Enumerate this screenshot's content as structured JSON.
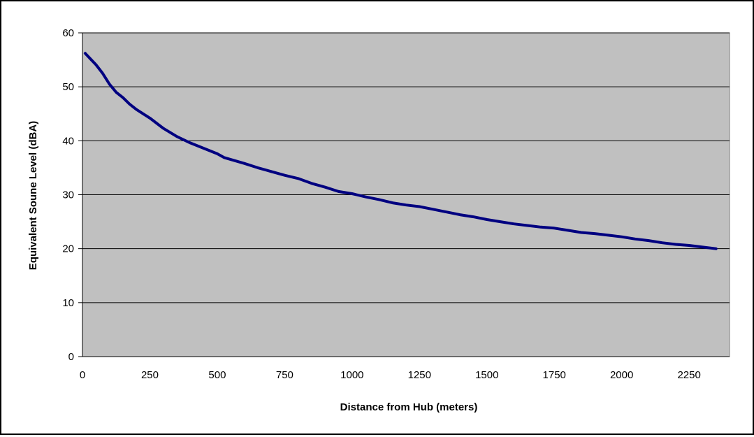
{
  "chart_data": {
    "type": "line",
    "title": "",
    "xlabel": "Distance from Hub (meters)",
    "ylabel": "Equivalent Soune Level (dBA)",
    "xlim": [
      0,
      2400
    ],
    "ylim": [
      0,
      60
    ],
    "x_ticks": [
      0,
      250,
      500,
      750,
      1000,
      1250,
      1500,
      1750,
      2000,
      2250
    ],
    "y_ticks": [
      0,
      10,
      20,
      30,
      40,
      50,
      60
    ],
    "grid": "horizontal",
    "legend": "none",
    "colors": {
      "plot_background": "#c0c0c0",
      "line": "#000080",
      "gridline": "#000000"
    },
    "series": [
      {
        "x": [
          10,
          50,
          75,
          100,
          125,
          150,
          175,
          200,
          250,
          300,
          350,
          400,
          450,
          500,
          525,
          600,
          650,
          700,
          750,
          800,
          850,
          900,
          950,
          1000,
          1050,
          1100,
          1150,
          1200,
          1250,
          1300,
          1350,
          1400,
          1450,
          1500,
          1550,
          1600,
          1650,
          1700,
          1750,
          1800,
          1850,
          1900,
          1950,
          2000,
          2050,
          2100,
          2150,
          2200,
          2250,
          2300,
          2350
        ],
        "y": [
          56.2,
          54.1,
          52.5,
          50.5,
          49.0,
          48.0,
          46.8,
          45.8,
          44.2,
          42.3,
          40.8,
          39.6,
          38.6,
          37.6,
          36.9,
          35.8,
          35.0,
          34.3,
          33.6,
          33.0,
          32.1,
          31.4,
          30.6,
          30.2,
          29.6,
          29.1,
          28.5,
          28.1,
          27.8,
          27.3,
          26.8,
          26.3,
          25.9,
          25.4,
          25.0,
          24.6,
          24.3,
          24.0,
          23.8,
          23.4,
          23.0,
          22.8,
          22.5,
          22.2,
          21.8,
          21.5,
          21.1,
          20.8,
          20.6,
          20.3,
          20.0
        ]
      }
    ]
  }
}
